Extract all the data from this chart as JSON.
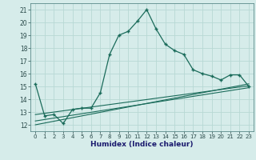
{
  "title": "",
  "xlabel": "Humidex (Indice chaleur)",
  "bg_color": "#d6ecea",
  "grid_color": "#b8d8d4",
  "line_color": "#1a6b5a",
  "xlim": [
    -0.5,
    23.5
  ],
  "ylim": [
    11.5,
    21.5
  ],
  "yticks": [
    12,
    13,
    14,
    15,
    16,
    17,
    18,
    19,
    20,
    21
  ],
  "xticks": [
    0,
    1,
    2,
    3,
    4,
    5,
    6,
    7,
    8,
    9,
    10,
    11,
    12,
    13,
    14,
    15,
    16,
    17,
    18,
    19,
    20,
    21,
    22,
    23
  ],
  "main_x": [
    0,
    1,
    2,
    3,
    4,
    5,
    6,
    7,
    8,
    9,
    10,
    11,
    12,
    13,
    14,
    15,
    16,
    17,
    18,
    19,
    20,
    21,
    22,
    23
  ],
  "main_y": [
    15.2,
    12.7,
    12.8,
    12.1,
    13.2,
    13.3,
    13.3,
    14.5,
    17.5,
    19.0,
    19.3,
    20.1,
    21.0,
    19.5,
    18.3,
    17.8,
    17.5,
    16.3,
    16.0,
    15.8,
    15.5,
    15.9,
    15.9,
    15.0
  ],
  "line1_x": [
    0,
    23
  ],
  "line1_y": [
    12.0,
    15.2
  ],
  "line2_x": [
    0,
    23
  ],
  "line2_y": [
    12.3,
    14.9
  ],
  "line3_x": [
    0,
    23
  ],
  "line3_y": [
    12.8,
    15.05
  ]
}
